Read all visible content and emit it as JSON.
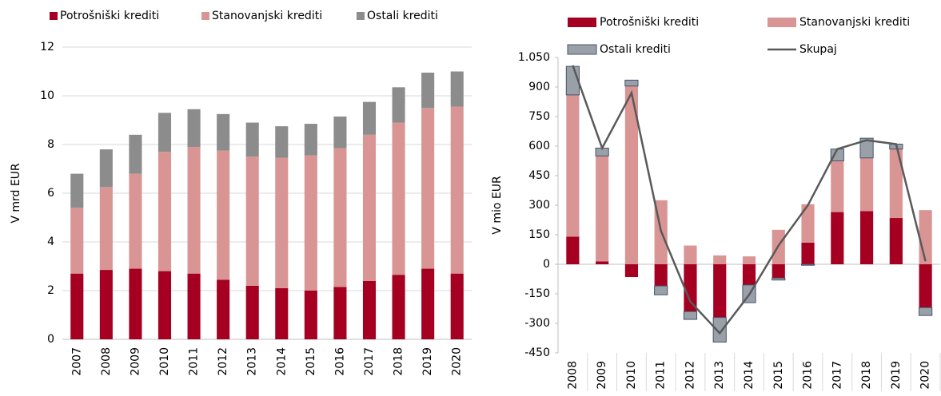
{
  "chart_data": [
    {
      "type": "bar",
      "y_label": "V mrd EUR",
      "categories": [
        "2007",
        "2008",
        "2009",
        "2010",
        "2011",
        "2012",
        "2013",
        "2014",
        "2015",
        "2016",
        "2017",
        "2018",
        "2019",
        "2020"
      ],
      "series": [
        {
          "name": "Potrošniški krediti",
          "color": "#a50021",
          "values": [
            2.7,
            2.85,
            2.9,
            2.8,
            2.7,
            2.45,
            2.2,
            2.1,
            2.0,
            2.15,
            2.4,
            2.65,
            2.9,
            2.7
          ]
        },
        {
          "name": "Stanovanjski krediti",
          "color": "#d99594",
          "values": [
            2.7,
            3.4,
            3.9,
            4.9,
            5.2,
            5.3,
            5.3,
            5.35,
            5.55,
            5.7,
            6.0,
            6.25,
            6.6,
            6.85
          ]
        },
        {
          "name": "Ostali krediti",
          "color": "#8c8c8c",
          "values": [
            1.4,
            1.55,
            1.6,
            1.6,
            1.55,
            1.5,
            1.4,
            1.3,
            1.3,
            1.3,
            1.35,
            1.45,
            1.45,
            1.45
          ]
        }
      ],
      "ylim": [
        0,
        12
      ],
      "yticks": [
        0,
        2,
        4,
        6,
        8,
        10,
        12
      ],
      "grid": true
    },
    {
      "type": "bar",
      "y_label": "V mio EUR",
      "categories": [
        "2008",
        "2009",
        "2010",
        "2011",
        "2012",
        "2013",
        "2014",
        "2015",
        "2016",
        "2017",
        "2018",
        "2019",
        "2020"
      ],
      "series": [
        {
          "name": "Potrošniški krediti",
          "color": "#a50021",
          "values": [
            140,
            15,
            -65,
            -110,
            -240,
            -270,
            -105,
            -70,
            110,
            265,
            270,
            235,
            -220
          ]
        },
        {
          "name": "Stanovanjski krediti",
          "color": "#d99594",
          "values": [
            720,
            535,
            905,
            325,
            95,
            45,
            40,
            175,
            195,
            260,
            270,
            350,
            275
          ]
        },
        {
          "name": "Ostali krediti",
          "color": "#9aa0a8",
          "stroke": "#44546a",
          "values": [
            145,
            40,
            30,
            -45,
            -40,
            -125,
            -90,
            -10,
            -5,
            60,
            100,
            25,
            -40
          ]
        },
        {
          "name": "Skupaj",
          "type": "line",
          "color": "#595959",
          "values": [
            1010,
            590,
            870,
            170,
            -190,
            -350,
            -155,
            95,
            300,
            585,
            630,
            610,
            15
          ]
        }
      ],
      "ylim": [
        -450,
        1050
      ],
      "yticks": [
        -450,
        -300,
        -150,
        0,
        150,
        300,
        450,
        600,
        750,
        900,
        {
          "value": 1050,
          "label": "1.050"
        }
      ],
      "grid": false
    }
  ]
}
